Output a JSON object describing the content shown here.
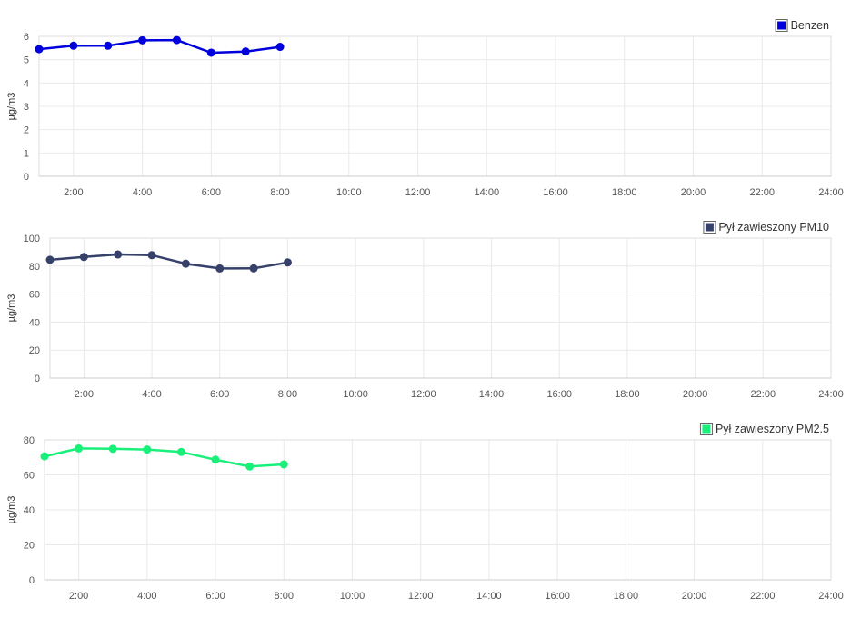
{
  "chart_data": [
    {
      "type": "line",
      "x_categories": [
        "1:00",
        "2:00",
        "3:00",
        "4:00",
        "5:00",
        "6:00",
        "7:00",
        "8:00"
      ],
      "x_hours": [
        1,
        2,
        3,
        4,
        5,
        6,
        7,
        8
      ],
      "x_tick_labels": [
        "2:00",
        "4:00",
        "6:00",
        "8:00",
        "10:00",
        "12:00",
        "14:00",
        "16:00",
        "18:00",
        "20:00",
        "22:00",
        "24:00"
      ],
      "xlim": [
        1,
        24
      ],
      "series": [
        {
          "name": "Benzen",
          "values": [
            5.45,
            5.6,
            5.6,
            5.83,
            5.84,
            5.3,
            5.35,
            5.55
          ]
        }
      ],
      "ylabel": "µg/m3",
      "ylim": [
        0,
        6
      ],
      "y_ticks": [
        "0",
        "1",
        "2",
        "3",
        "4",
        "5",
        "6"
      ],
      "color": "#0000dd",
      "grid": true,
      "legend_position": "top-right"
    },
    {
      "type": "line",
      "x_categories": [
        "1:00",
        "2:00",
        "3:00",
        "4:00",
        "5:00",
        "6:00",
        "7:00",
        "8:00"
      ],
      "x_hours": [
        1,
        2,
        3,
        4,
        5,
        6,
        7,
        8
      ],
      "x_tick_labels": [
        "2:00",
        "4:00",
        "6:00",
        "8:00",
        "10:00",
        "12:00",
        "14:00",
        "16:00",
        "18:00",
        "20:00",
        "22:00",
        "24:00"
      ],
      "xlim": [
        1,
        24
      ],
      "series": [
        {
          "name": "Pył zawieszony PM10",
          "values": [
            84.5,
            86.5,
            88.3,
            87.8,
            81.7,
            78.3,
            78.4,
            82.6
          ]
        }
      ],
      "ylabel": "µg/m3",
      "ylim": [
        0,
        100
      ],
      "y_ticks": [
        "0",
        "20",
        "40",
        "60",
        "80",
        "100"
      ],
      "color": "#36416a",
      "grid": true,
      "legend_position": "top-right"
    },
    {
      "type": "line",
      "x_categories": [
        "1:00",
        "2:00",
        "3:00",
        "4:00",
        "5:00",
        "6:00",
        "7:00",
        "8:00"
      ],
      "x_hours": [
        1,
        2,
        3,
        4,
        5,
        6,
        7,
        8
      ],
      "x_tick_labels": [
        "2:00",
        "4:00",
        "6:00",
        "8:00",
        "10:00",
        "12:00",
        "14:00",
        "16:00",
        "18:00",
        "20:00",
        "22:00",
        "24:00"
      ],
      "xlim": [
        1,
        24
      ],
      "series": [
        {
          "name": "Pył zawieszony PM2.5",
          "values": [
            70.6,
            75.1,
            74.9,
            74.5,
            73.1,
            68.7,
            64.8,
            66.0
          ]
        }
      ],
      "ylabel": "µg/m3",
      "ylim": [
        0,
        80
      ],
      "y_ticks": [
        "0",
        "20",
        "40",
        "60",
        "80"
      ],
      "color": "#19f07a",
      "grid": true,
      "legend_position": "top-right"
    }
  ]
}
